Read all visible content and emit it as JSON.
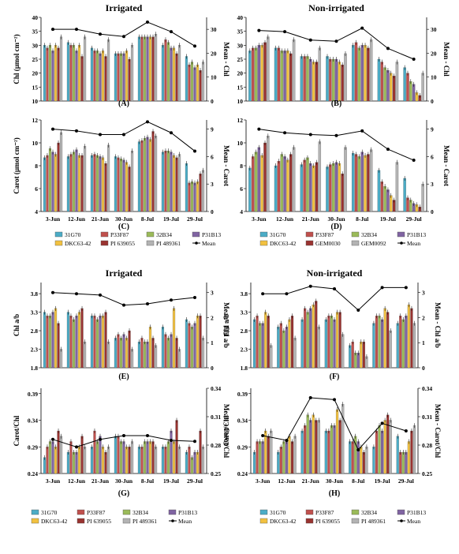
{
  "chart_data": [
    {
      "id": "A",
      "type": "bar",
      "panel_label": "(A)",
      "title": "Irrigated",
      "categories": [
        "3-Jun",
        "12-Jun",
        "21-Jun",
        "30-Jun",
        "8-Jul",
        "19-Jul",
        "29-Jul"
      ],
      "ylabel": "Chl (µmol cm⁻²)",
      "ylim": [
        10,
        40
      ],
      "yticks": [
        10,
        15,
        20,
        25,
        30,
        35,
        40
      ],
      "y2label": "Mean - Chl",
      "y2lim": [
        0,
        35
      ],
      "y2ticks": [
        0,
        10,
        20,
        30
      ],
      "series": [
        {
          "name": "31G70",
          "values": [
            30,
            31,
            29,
            27,
            33,
            30,
            26
          ]
        },
        {
          "name": "P33F87",
          "values": [
            29,
            30,
            28,
            27,
            33,
            32,
            23
          ]
        },
        {
          "name": "32B34",
          "values": [
            30,
            30,
            28,
            27,
            33,
            31,
            24
          ]
        },
        {
          "name": "P31B13",
          "values": [
            28,
            28,
            27,
            27,
            33,
            29,
            22
          ]
        },
        {
          "name": "DKC63-42",
          "values": [
            30,
            30,
            28,
            28,
            33,
            29,
            23
          ]
        },
        {
          "name": "PI 639055",
          "values": [
            29,
            26,
            26,
            25,
            33,
            27,
            21
          ]
        },
        {
          "name": "PI 489361",
          "values": [
            33,
            33,
            32,
            30,
            34,
            30,
            24
          ]
        }
      ],
      "mean": {
        "name": "Mean",
        "values": [
          30,
          30,
          28,
          27,
          33,
          29,
          23
        ]
      },
      "legend": {
        "first_row": [
          "31G70",
          "P33F87",
          "32B34",
          "P31B13"
        ],
        "second_row": [
          "DKC63-42",
          "PI 639055",
          "PI 489361",
          "Mean"
        ]
      }
    },
    {
      "id": "B",
      "type": "bar",
      "panel_label": "(B)",
      "title": "Non-irrigated",
      "categories": [
        "3-Jun",
        "12-Jun",
        "21-Jun",
        "30-Jun",
        "8-Jul",
        "19-Jul",
        "29-Jul"
      ],
      "ylabel": "",
      "ylim": [
        10,
        40
      ],
      "yticks": [
        10,
        15,
        20,
        25,
        30,
        35,
        40
      ],
      "y2label": "Mean - Chl",
      "y2lim": [
        0,
        35
      ],
      "y2ticks": [
        0,
        10,
        20,
        30
      ],
      "series": [
        {
          "name": "31G70",
          "values": [
            28,
            29,
            26,
            26,
            30,
            25,
            22
          ]
        },
        {
          "name": "P33F87",
          "values": [
            29,
            29,
            26,
            25,
            31,
            24,
            20
          ]
        },
        {
          "name": "32B34",
          "values": [
            29,
            28,
            26,
            25,
            29,
            22,
            17
          ]
        },
        {
          "name": "P31B13",
          "values": [
            30,
            28,
            25,
            25,
            30,
            21,
            16
          ]
        },
        {
          "name": "DKC63-42",
          "values": [
            30,
            28,
            24,
            24,
            30,
            20,
            13
          ]
        },
        {
          "name": "GEM0030",
          "values": [
            31,
            27,
            24,
            23,
            29,
            19,
            12
          ]
        },
        {
          "name": "GEM0092",
          "values": [
            33,
            32,
            29,
            27,
            32,
            24,
            20
          ]
        }
      ],
      "mean": {
        "name": "Mean",
        "values": [
          29.5,
          29,
          25.5,
          25,
          30.5,
          22,
          17.5
        ]
      },
      "legend": {
        "first_row": [
          "31G70",
          "P33F87",
          "32B34",
          "P31B13"
        ],
        "second_row": [
          "DKC63-42",
          "GEM0030",
          "GEM0092",
          "Mean"
        ]
      }
    },
    {
      "id": "C",
      "type": "bar",
      "panel_label": "(C)",
      "title": "",
      "categories": [
        "3-Jun",
        "12-Jun",
        "21-Jun",
        "30-Jun",
        "8-Jul",
        "19-Jul",
        "29-Jul"
      ],
      "ylabel": "Carot (µmol cm⁻²)",
      "ylim": [
        4,
        12
      ],
      "yticks": [
        4,
        6,
        8,
        10,
        12
      ],
      "y2label": "Mean - Carot",
      "y2lim": [
        0,
        10
      ],
      "y2ticks": [
        0,
        3,
        6,
        9
      ],
      "series": [
        {
          "name": "31G70",
          "values": [
            8.7,
            8.8,
            8.9,
            8.8,
            10.1,
            9.2,
            8.2
          ]
        },
        {
          "name": "P33F87",
          "values": [
            8.9,
            9.0,
            9.0,
            8.7,
            10.2,
            9.3,
            6.5
          ]
        },
        {
          "name": "32B34",
          "values": [
            9.5,
            9.2,
            8.9,
            8.6,
            10.4,
            9.3,
            6.6
          ]
        },
        {
          "name": "P31B13",
          "values": [
            9.2,
            9.4,
            8.8,
            8.5,
            10.5,
            9.2,
            6.5
          ]
        },
        {
          "name": "DKC63-42",
          "values": [
            9.0,
            8.9,
            8.7,
            8.3,
            10.3,
            8.9,
            6.6
          ]
        },
        {
          "name": "PI 639055",
          "values": [
            10.0,
            8.9,
            8.2,
            7.9,
            11.0,
            8.7,
            7.3
          ]
        },
        {
          "name": "PI 489361",
          "values": [
            10.9,
            9.7,
            9.8,
            9.3,
            10.6,
            9.0,
            7.6
          ]
        }
      ],
      "mean": {
        "name": "Mean",
        "values": [
          9.0,
          8.8,
          8.4,
          8.4,
          9.8,
          8.6,
          6.6
        ]
      },
      "legend": null
    },
    {
      "id": "D",
      "type": "bar",
      "panel_label": "(D)",
      "title": "",
      "categories": [
        "3-Jun",
        "12-Jun",
        "21-Jun",
        "30-Jun",
        "8-Jul",
        "19-Jul",
        "29-Jul"
      ],
      "ylabel": "",
      "ylim": [
        4,
        12
      ],
      "yticks": [
        4,
        6,
        8,
        10,
        12
      ],
      "y2label": "Mean - Carot",
      "y2lim": [
        0,
        10
      ],
      "y2ticks": [
        0,
        3,
        6,
        9
      ],
      "series": [
        {
          "name": "31G70",
          "values": [
            7.8,
            8.0,
            8.1,
            7.9,
            9.1,
            7.6,
            6.9
          ]
        },
        {
          "name": "P33F87",
          "values": [
            8.8,
            8.4,
            8.5,
            8.1,
            9.0,
            6.6,
            5.2
          ]
        },
        {
          "name": "32B34",
          "values": [
            9.2,
            9.0,
            8.7,
            8.2,
            8.8,
            6.2,
            5.0
          ]
        },
        {
          "name": "P31B13",
          "values": [
            9.6,
            8.8,
            8.2,
            8.3,
            9.2,
            5.9,
            4.7
          ]
        },
        {
          "name": "DKC63-42",
          "values": [
            8.9,
            8.5,
            8.0,
            8.2,
            8.9,
            5.4,
            4.6
          ]
        },
        {
          "name": "GEM0030",
          "values": [
            10.0,
            9.0,
            8.3,
            7.3,
            9.0,
            5.0,
            4.4
          ]
        },
        {
          "name": "GEM0092",
          "values": [
            10.6,
            9.6,
            10.1,
            9.6,
            9.4,
            8.3,
            6.4
          ]
        }
      ],
      "mean": {
        "name": "Mean",
        "values": [
          9.0,
          8.6,
          8.4,
          8.3,
          8.8,
          6.8,
          5.6
        ]
      },
      "legend": {
        "first_row": [
          "31G70",
          "P33F87",
          "32B34",
          "P31B13"
        ],
        "second_row": [
          "DKC63-42",
          "GEM0030",
          "GEM0092",
          "Mean"
        ]
      }
    },
    {
      "id": "E",
      "type": "bar",
      "panel_label": "(E)",
      "title": "Irrigated",
      "categories": [
        "3-Jun",
        "12-Jun",
        "21-Jun",
        "30-Jun",
        "8-Jul",
        "19-Jul",
        "29-Jul"
      ],
      "ylabel": "Chl a/b",
      "ylim": [
        1.8,
        4.1
      ],
      "yticks": [
        1.8,
        2.3,
        2.8,
        3.3,
        3.8
      ],
      "y2label": "Mean - Chl a/b",
      "y2lim": [
        0,
        3.4
      ],
      "y2ticks": [
        0,
        1,
        2,
        3
      ],
      "series": [
        {
          "name": "31G70",
          "values": [
            3.3,
            3.3,
            3.2,
            2.6,
            2.5,
            2.9,
            3.1
          ]
        },
        {
          "name": "P33F87",
          "values": [
            3.2,
            3.2,
            3.2,
            2.7,
            2.6,
            2.7,
            3.0
          ]
        },
        {
          "name": "32B34",
          "values": [
            3.2,
            3.1,
            3.1,
            2.6,
            2.5,
            2.6,
            2.9
          ]
        },
        {
          "name": "P31B13",
          "values": [
            3.3,
            3.2,
            3.2,
            2.7,
            2.5,
            2.7,
            3.0
          ]
        },
        {
          "name": "DKC63-42",
          "values": [
            3.4,
            3.3,
            3.2,
            2.6,
            2.9,
            3.4,
            3.2
          ]
        },
        {
          "name": "PI 639055",
          "values": [
            3.0,
            3.4,
            3.3,
            2.8,
            2.6,
            2.6,
            3.2
          ]
        },
        {
          "name": "PI 489361",
          "values": [
            2.3,
            2.5,
            2.5,
            2.3,
            2.4,
            2.3,
            2.6
          ]
        }
      ],
      "mean": {
        "name": "Mean",
        "values": [
          3.0,
          2.95,
          2.9,
          2.5,
          2.55,
          2.7,
          2.8
        ]
      },
      "legend": null
    },
    {
      "id": "F",
      "type": "bar",
      "panel_label": "(F)",
      "title": "Non-irrigated",
      "categories": [
        "3-Jun",
        "12-Jun",
        "21-Jun",
        "30-Jun",
        "8-Jul",
        "19-Jul",
        "29-Jul"
      ],
      "ylabel": "Chl a/b",
      "ylim": [
        1.8,
        4.1
      ],
      "yticks": [
        1.8,
        2.3,
        2.8,
        3.3,
        3.8
      ],
      "y2label": "Mean - Chl a/b",
      "y2lim": [
        0,
        3.4
      ],
      "y2ticks": [
        0,
        1,
        2,
        3
      ],
      "series": [
        {
          "name": "31G70",
          "values": [
            3.1,
            2.9,
            3.1,
            3.1,
            2.4,
            3.0,
            3.0
          ]
        },
        {
          "name": "P33F87",
          "values": [
            3.2,
            3.0,
            3.4,
            3.2,
            2.5,
            3.2,
            3.2
          ]
        },
        {
          "name": "32B34",
          "values": [
            3.0,
            2.8,
            3.3,
            3.2,
            2.2,
            3.2,
            3.1
          ]
        },
        {
          "name": "P31B13",
          "values": [
            3.0,
            2.9,
            3.4,
            3.1,
            2.2,
            3.1,
            3.2
          ]
        },
        {
          "name": "DKC63-42",
          "values": [
            3.3,
            3.1,
            3.5,
            3.3,
            2.5,
            3.4,
            3.5
          ]
        },
        {
          "name": "PI 639055",
          "values": [
            3.2,
            3.2,
            3.6,
            3.3,
            2.5,
            3.3,
            3.4
          ]
        },
        {
          "name": "PI 489361",
          "values": [
            2.4,
            2.6,
            2.9,
            2.7,
            2.1,
            2.8,
            3.0
          ]
        }
      ],
      "mean": {
        "name": "Mean",
        "values": [
          2.95,
          2.95,
          3.25,
          3.15,
          2.3,
          3.2,
          3.2
        ]
      },
      "legend": null
    },
    {
      "id": "G",
      "type": "bar",
      "panel_label": "(G)",
      "title": "",
      "categories": [
        "3-Jun",
        "12-Jun",
        "21-Jun",
        "30-Jun",
        "8-Jul",
        "19-Jul",
        "29-Jul"
      ],
      "ylabel": "Carot/Chl",
      "ylim": [
        0.24,
        0.4
      ],
      "yticks": [
        0.24,
        0.29,
        0.34,
        0.39
      ],
      "y2label": "Mean - Carot/Chl",
      "y2lim": [
        0.25,
        0.34
      ],
      "y2ticks": [
        0.25,
        0.28,
        0.31,
        0.34
      ],
      "series": [
        {
          "name": "31G70",
          "values": [
            0.27,
            0.28,
            0.29,
            0.31,
            0.29,
            0.29,
            0.28
          ]
        },
        {
          "name": "P33F87",
          "values": [
            0.29,
            0.3,
            0.32,
            0.31,
            0.29,
            0.29,
            0.29
          ]
        },
        {
          "name": "32B34",
          "values": [
            0.3,
            0.28,
            0.3,
            0.3,
            0.3,
            0.3,
            0.27
          ]
        },
        {
          "name": "P31B13",
          "values": [
            0.3,
            0.28,
            0.31,
            0.3,
            0.3,
            0.32,
            0.28
          ]
        },
        {
          "name": "DKC63-42",
          "values": [
            0.29,
            0.29,
            0.29,
            0.29,
            0.3,
            0.3,
            0.28
          ]
        },
        {
          "name": "PI 639055",
          "values": [
            0.32,
            0.31,
            0.28,
            0.29,
            0.3,
            0.34,
            0.32
          ]
        },
        {
          "name": "PI 489361",
          "values": [
            0.31,
            0.29,
            0.29,
            0.3,
            0.29,
            0.29,
            0.29
          ]
        }
      ],
      "mean": {
        "name": "Mean",
        "values": [
          0.286,
          0.278,
          0.286,
          0.29,
          0.29,
          0.285,
          0.284
        ]
      },
      "legend": {
        "first_row": [
          "31G70",
          "P33F87",
          "32B34",
          "P31B13"
        ],
        "second_row": [
          "DKC63-42",
          "PI 639055",
          "PI 489361",
          "Mean"
        ]
      }
    },
    {
      "id": "H",
      "type": "bar",
      "panel_label": "(H)",
      "title": "",
      "categories": [
        "3-Jun",
        "12-Jun",
        "21-Jun",
        "30-Jun",
        "8-Jul",
        "19-Jul",
        "29-Jul"
      ],
      "ylabel": "Carot/Chl",
      "ylim": [
        0.24,
        0.4
      ],
      "yticks": [
        0.24,
        0.29,
        0.34,
        0.39
      ],
      "y2label": "Mean - Carot/Chl",
      "y2lim": [
        0.25,
        0.34
      ],
      "y2ticks": [
        0.25,
        0.28,
        0.31,
        0.34
      ],
      "series": [
        {
          "name": "31G70",
          "values": [
            0.28,
            0.28,
            0.32,
            0.32,
            0.3,
            0.29,
            0.31
          ]
        },
        {
          "name": "P33F87",
          "values": [
            0.3,
            0.29,
            0.33,
            0.32,
            0.3,
            0.32,
            0.28
          ]
        },
        {
          "name": "32B34",
          "values": [
            0.3,
            0.3,
            0.35,
            0.33,
            0.31,
            0.33,
            0.28
          ]
        },
        {
          "name": "P31B13",
          "values": [
            0.3,
            0.3,
            0.34,
            0.33,
            0.3,
            0.32,
            0.28
          ]
        },
        {
          "name": "DKC63-42",
          "values": [
            0.32,
            0.31,
            0.35,
            0.36,
            0.29,
            0.34,
            0.3
          ]
        },
        {
          "name": "PI 639055",
          "values": [
            0.31,
            0.3,
            0.34,
            0.34,
            0.28,
            0.35,
            0.32
          ]
        },
        {
          "name": "PI 489361",
          "values": [
            0.32,
            0.31,
            0.34,
            0.37,
            0.29,
            0.34,
            0.33
          ]
        }
      ],
      "mean": {
        "name": "Mean",
        "values": [
          0.29,
          0.285,
          0.33,
          0.328,
          0.275,
          0.303,
          0.295
        ]
      },
      "legend": {
        "first_row": [
          "31G70",
          "P33F87",
          "32B34",
          "P31B13"
        ],
        "second_row": [
          "DKC63-42",
          "PI 639055",
          "PI 489361",
          "Mean"
        ]
      }
    }
  ],
  "colors": {
    "series": [
      "#4bacc6",
      "#c0504d",
      "#9bbb59",
      "#8064a2",
      "#f2c140",
      "#993330",
      "#b3b3b3"
    ],
    "mean_line": "#000000"
  }
}
